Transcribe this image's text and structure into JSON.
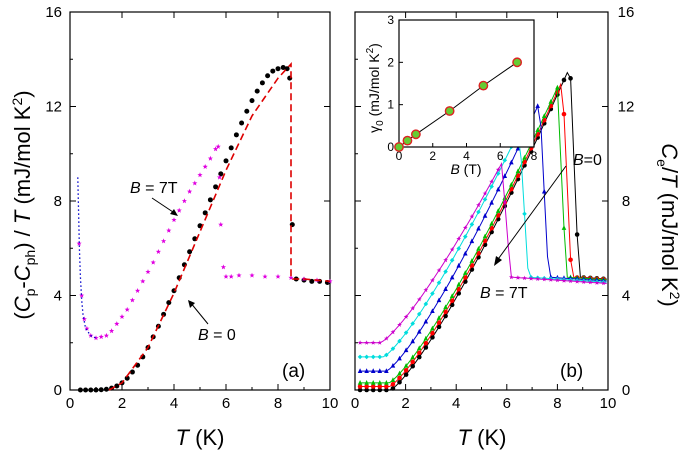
{
  "chart_data": [
    {
      "type": "scatter",
      "panel_label": "(a)",
      "xlabel": "T (K)",
      "ylabel": "(C_p - C_ph) / T (mJ/mol K^2)",
      "xlim": [
        0,
        10
      ],
      "ylim": [
        0,
        16
      ],
      "xticks": [
        "0",
        "2",
        "4",
        "6",
        "8",
        "10"
      ],
      "yticks": [
        "0",
        "4",
        "8",
        "12",
        "16"
      ],
      "grid": false,
      "annotations": [
        "B = 7T",
        "B = 0"
      ],
      "series": [
        {
          "color": "#000000",
          "marker": "circle",
          "x": [
            0.4,
            0.6,
            0.8,
            1.0,
            1.2,
            1.4,
            1.6,
            1.8,
            2.0,
            2.2,
            2.4,
            2.6,
            2.8,
            3.0,
            3.2,
            3.4,
            3.6,
            3.8,
            4.0,
            4.2,
            4.4,
            4.6,
            4.8,
            5.0,
            5.2,
            5.4,
            5.6,
            5.8,
            6.0,
            6.2,
            6.4,
            6.6,
            6.8,
            7.0,
            7.2,
            7.4,
            7.6,
            7.8,
            8.0,
            8.2,
            8.35,
            8.45,
            8.55,
            8.7,
            9.0,
            9.3,
            9.6,
            9.9
          ],
          "y": [
            0.0,
            0.0,
            0.0,
            0.0,
            0.01,
            0.03,
            0.08,
            0.17,
            0.3,
            0.5,
            0.76,
            1.05,
            1.4,
            1.8,
            2.25,
            2.7,
            3.2,
            3.7,
            4.2,
            4.75,
            5.3,
            5.85,
            6.4,
            6.95,
            7.5,
            8.05,
            8.6,
            9.15,
            9.7,
            10.25,
            10.8,
            11.3,
            11.8,
            12.25,
            12.65,
            13.0,
            13.3,
            13.5,
            13.6,
            13.65,
            13.6,
            13.2,
            7.0,
            4.7,
            4.65,
            4.6,
            4.6,
            4.55
          ]
        },
        {
          "color": "#e000e0",
          "marker": "star",
          "x": [
            0.35,
            0.45,
            0.55,
            0.65,
            0.8,
            1.0,
            1.2,
            1.4,
            1.6,
            1.8,
            2.0,
            2.2,
            2.4,
            2.6,
            2.8,
            3.0,
            3.2,
            3.4,
            3.6,
            3.8,
            4.0,
            4.2,
            4.4,
            4.6,
            4.8,
            5.0,
            5.2,
            5.4,
            5.6,
            5.7,
            5.75,
            5.8,
            5.9,
            6.0,
            6.2,
            6.5,
            7.0,
            7.5,
            8.0,
            8.5,
            9.0,
            9.5,
            10.0
          ],
          "y": [
            6.2,
            4.0,
            3.0,
            2.6,
            2.3,
            2.2,
            2.25,
            2.3,
            2.5,
            2.8,
            3.1,
            3.4,
            3.8,
            4.2,
            4.6,
            5.0,
            5.4,
            5.85,
            6.3,
            6.75,
            7.2,
            7.6,
            8.0,
            8.4,
            8.75,
            9.1,
            9.45,
            9.8,
            10.2,
            10.3,
            9.0,
            7.0,
            5.2,
            4.8,
            4.8,
            4.85,
            4.85,
            4.8,
            4.8,
            4.75,
            4.7,
            4.65,
            4.6
          ]
        },
        {
          "color": "#dd0000",
          "style": "dashed",
          "x": [
            1.5,
            2.0,
            3.0,
            4.0,
            5.0,
            6.0,
            7.0,
            8.0,
            8.5,
            8.5,
            9.0,
            10.0
          ],
          "y": [
            0.0,
            0.3,
            1.8,
            4.1,
            6.7,
            9.3,
            11.6,
            13.2,
            13.8,
            4.7,
            4.7,
            4.6
          ]
        },
        {
          "color": "#0000cc",
          "style": "dotted",
          "x": [
            0.3,
            0.33,
            0.36,
            0.4,
            0.45,
            0.5,
            0.6,
            0.8,
            1.0
          ],
          "y": [
            9.0,
            7.5,
            6.0,
            4.8,
            3.8,
            3.2,
            2.6,
            2.3,
            2.2
          ]
        }
      ]
    },
    {
      "type": "scatter",
      "panel_label": "(b)",
      "xlabel": "T (K)",
      "ylabel": "C_e / T (mJ/mol K^2)",
      "xlim": [
        0,
        10
      ],
      "ylim": [
        0,
        16
      ],
      "xticks": [
        "0",
        "2",
        "4",
        "6",
        "8",
        "10"
      ],
      "yticks": [
        "0",
        "4",
        "8",
        "12",
        "16"
      ],
      "grid": false,
      "annotations": [
        "B = 0",
        "B = 7T"
      ],
      "series": [
        {
          "color": "#000000",
          "marker": "circle",
          "base": 0.0,
          "tc": 8.5,
          "peak": 13.7
        },
        {
          "color": "#ff0000",
          "marker": "circle",
          "base": 0.15,
          "tc": 8.2,
          "peak": 13.1
        },
        {
          "color": "#00bb00",
          "marker": "triangle",
          "base": 0.3,
          "tc": 8.0,
          "peak": 12.8
        },
        {
          "color": "#0000cc",
          "marker": "triangle",
          "base": 0.8,
          "tc": 7.3,
          "peak": 12.2
        },
        {
          "color": "#00dddd",
          "marker": "diamond",
          "base": 1.4,
          "tc": 6.5,
          "peak": 11.0
        },
        {
          "color": "#cc00cc",
          "marker": "star",
          "base": 2.0,
          "tc": 5.8,
          "peak": 9.6
        }
      ],
      "inset": {
        "xlabel": "B (T)",
        "ylabel": "γ0 (mJ/mol K^2)",
        "xlim": [
          0,
          8
        ],
        "ylim": [
          0,
          3
        ],
        "xticks": [
          "0",
          "2",
          "4",
          "6",
          "8"
        ],
        "yticks": [
          "0",
          "1",
          "2",
          "3"
        ],
        "x": [
          0,
          0.5,
          1,
          3,
          5,
          7
        ],
        "y": [
          0.0,
          0.15,
          0.3,
          0.85,
          1.45,
          2.0
        ]
      }
    }
  ]
}
